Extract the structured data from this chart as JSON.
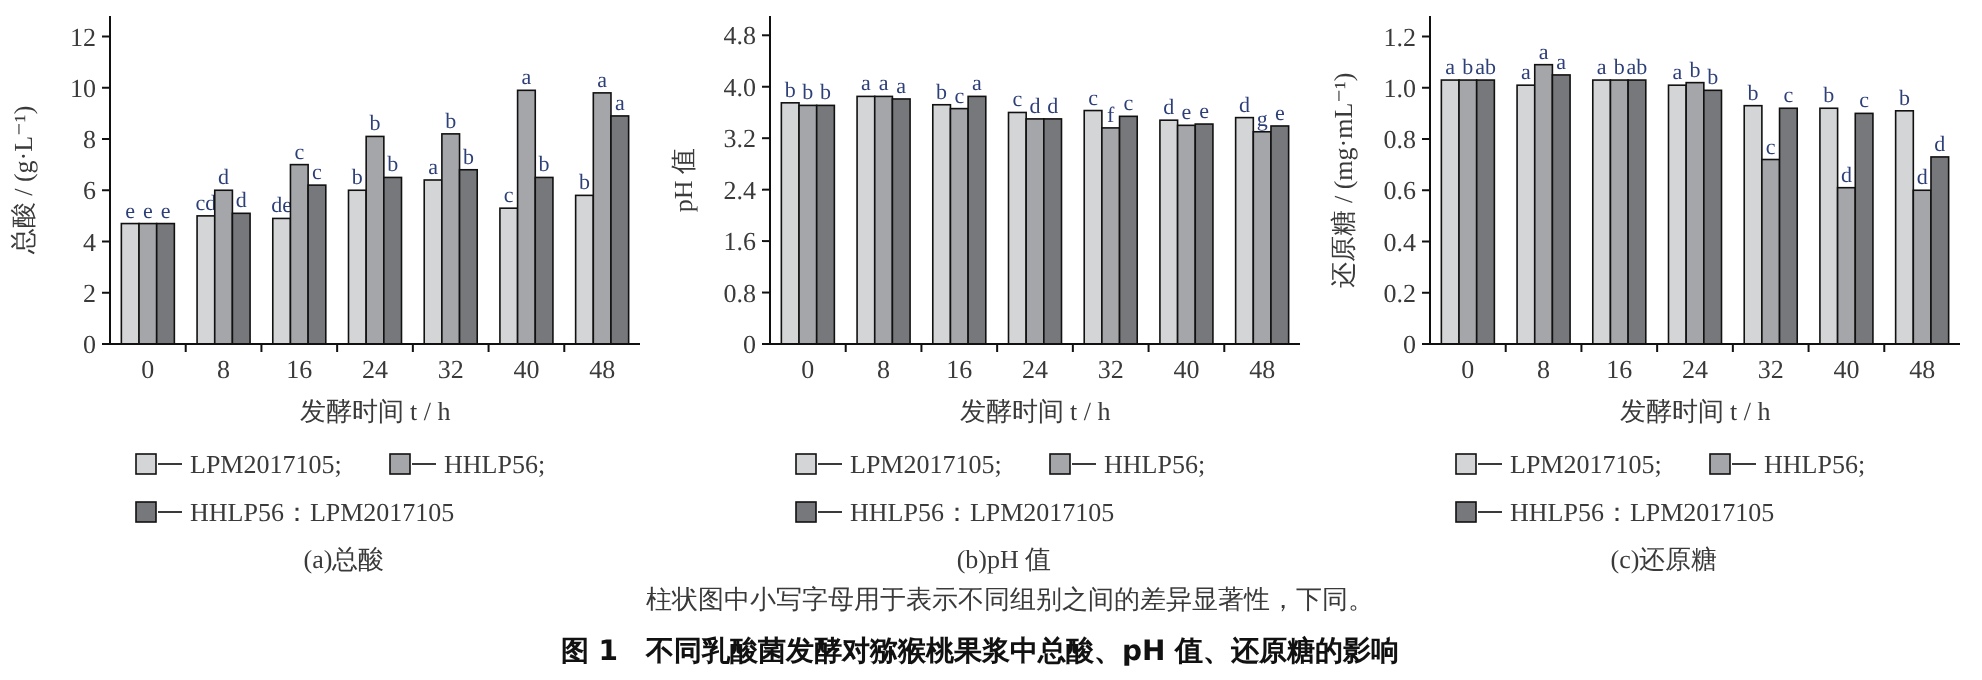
{
  "chart_data": [
    {
      "type": "bar",
      "subtitle": "(a)总酸",
      "xlabel": "发酵时间 t / h",
      "ylabel": "总酸 / (g·L⁻¹)",
      "categories": [
        "0",
        "8",
        "16",
        "24",
        "32",
        "40",
        "48"
      ],
      "ylim": [
        0,
        12.8
      ],
      "yticks": [
        0,
        2,
        4,
        6,
        8,
        10,
        12
      ],
      "legend": "bottom",
      "annotations": [
        "柱状图中小写字母用于表示不同组别之间的差异显著性，下同。",
        "图 1　不同乳酸菌发酵对猕猴桃果浆中总酸、pH 值、还原糖的影响"
      ],
      "series": [
        {
          "name": "LPM2017105;",
          "color": "#d4d5d7",
          "values": [
            4.7,
            5.0,
            4.9,
            6.0,
            6.4,
            5.3,
            5.8
          ],
          "value_labels": [
            "e",
            "cd",
            "de",
            "b",
            "a",
            "c",
            "b"
          ]
        },
        {
          "name": "HHLP56;",
          "color": "#a5a6a9",
          "values": [
            4.7,
            6.0,
            7.0,
            8.1,
            8.2,
            9.9,
            9.8
          ],
          "value_labels": [
            "e",
            "d",
            "c",
            "b",
            "b",
            "a",
            "a"
          ]
        },
        {
          "name": "HHLP56：LPM2017105",
          "color": "#77787b",
          "values": [
            4.7,
            5.1,
            6.2,
            6.5,
            6.8,
            6.5,
            8.9
          ],
          "value_labels": [
            "e",
            "d",
            "c",
            "b",
            "b",
            "b",
            "a"
          ]
        }
      ]
    },
    {
      "type": "bar",
      "subtitle": "(b)pH 值",
      "xlabel": "发酵时间 t / h",
      "ylabel": "pH 值",
      "categories": [
        "0",
        "8",
        "16",
        "24",
        "32",
        "40",
        "48"
      ],
      "ylim": [
        0,
        5.1
      ],
      "yticks": [
        0,
        0.8,
        1.6,
        2.4,
        3.2,
        {
          "value": 4,
          "label": "4.0"
        },
        4.8
      ],
      "legend": "bottom",
      "series": [
        {
          "name": "LPM2017105;",
          "color": "#d4d5d7",
          "values": [
            3.75,
            3.85,
            3.72,
            3.6,
            3.63,
            3.48,
            3.52
          ],
          "value_labels": [
            "b",
            "a",
            "b",
            "c",
            "c",
            "d",
            "d"
          ]
        },
        {
          "name": "HHLP56;",
          "color": "#a5a6a9",
          "values": [
            3.71,
            3.85,
            3.66,
            3.5,
            3.36,
            3.4,
            3.3
          ],
          "value_labels": [
            "b",
            "a",
            "c",
            "d",
            "f",
            "e",
            "g"
          ]
        },
        {
          "name": "HHLP56：LPM2017105",
          "color": "#77787b",
          "values": [
            3.71,
            3.81,
            3.85,
            3.5,
            3.54,
            3.42,
            3.39
          ],
          "value_labels": [
            "b",
            "a",
            "a",
            "d",
            "c",
            "e",
            "e"
          ]
        }
      ]
    },
    {
      "type": "bar",
      "subtitle": "(c)还原糖",
      "xlabel": "发酵时间 t / h",
      "ylabel": "还原糖 / (mg·mL⁻¹)",
      "categories": [
        "0",
        "8",
        "16",
        "24",
        "32",
        "40",
        "48"
      ],
      "ylim": [
        0,
        1.28
      ],
      "yticks": [
        0,
        0.2,
        0.4,
        0.6,
        0.8,
        {
          "value": 1,
          "label": "1.0"
        },
        1.2
      ],
      "legend": "bottom",
      "series": [
        {
          "name": "LPM2017105;",
          "color": "#d4d5d7",
          "values": [
            1.03,
            1.01,
            1.03,
            1.01,
            0.93,
            0.92,
            0.91
          ],
          "value_labels": [
            "a",
            "a",
            "a",
            "a",
            "b",
            "b",
            "b"
          ]
        },
        {
          "name": "HHLP56;",
          "color": "#a5a6a9",
          "values": [
            1.03,
            1.09,
            1.03,
            1.02,
            0.72,
            0.61,
            0.6
          ],
          "value_labels": [
            "b",
            "a",
            "b",
            "b",
            "c",
            "d",
            "d"
          ]
        },
        {
          "name": "HHLP56：LPM2017105",
          "color": "#77787b",
          "values": [
            1.03,
            1.05,
            1.03,
            0.99,
            0.92,
            0.9,
            0.73
          ],
          "value_labels": [
            "ab",
            "a",
            "ab",
            "b",
            "c",
            "c",
            "d"
          ]
        }
      ]
    }
  ]
}
